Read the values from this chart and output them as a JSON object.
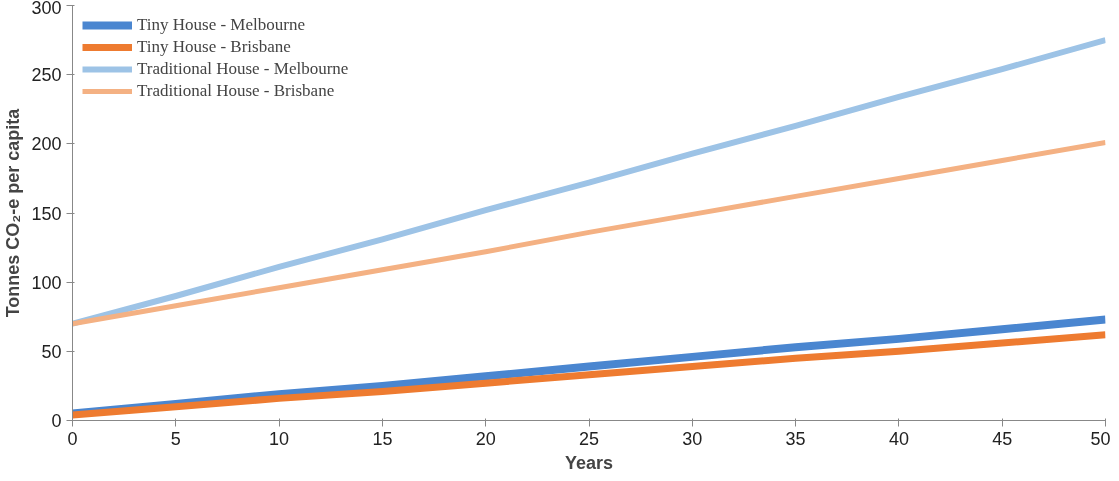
{
  "chart_data": {
    "type": "line",
    "xlabel": "Years",
    "ylabel": "Tonnes CO₂-e per capita",
    "x": [
      0,
      5,
      10,
      15,
      20,
      25,
      30,
      35,
      40,
      45,
      50
    ],
    "series": [
      {
        "name": "Tiny House - Melbourne",
        "color": "#4a86d0",
        "values": [
          5,
          12,
          19,
          25,
          32,
          39,
          46,
          53,
          59,
          66,
          73
        ]
      },
      {
        "name": "Tiny House - Brisbane",
        "color": "#ee7b30",
        "values": [
          4,
          10,
          16,
          21,
          27,
          33,
          39,
          45,
          50,
          56,
          62
        ]
      },
      {
        "name": "Traditional House - Melbourne",
        "color": "#9dc3e6",
        "values": [
          70,
          90,
          111,
          131,
          152,
          172,
          193,
          213,
          234,
          254,
          275
        ]
      },
      {
        "name": "Traditional House - Brisbane",
        "color": "#f4b183",
        "values": [
          70,
          83,
          96,
          109,
          122,
          136,
          149,
          162,
          175,
          188,
          201
        ]
      }
    ],
    "xlim": [
      0,
      50
    ],
    "xticks": [
      0,
      5,
      10,
      15,
      20,
      25,
      30,
      35,
      40,
      45,
      50
    ],
    "ylim": [
      0,
      300
    ],
    "yticks": [
      0,
      50,
      100,
      150,
      200,
      250,
      300
    ],
    "grid": false,
    "legend": "top left",
    "marker": "none",
    "line_style": "solid"
  }
}
